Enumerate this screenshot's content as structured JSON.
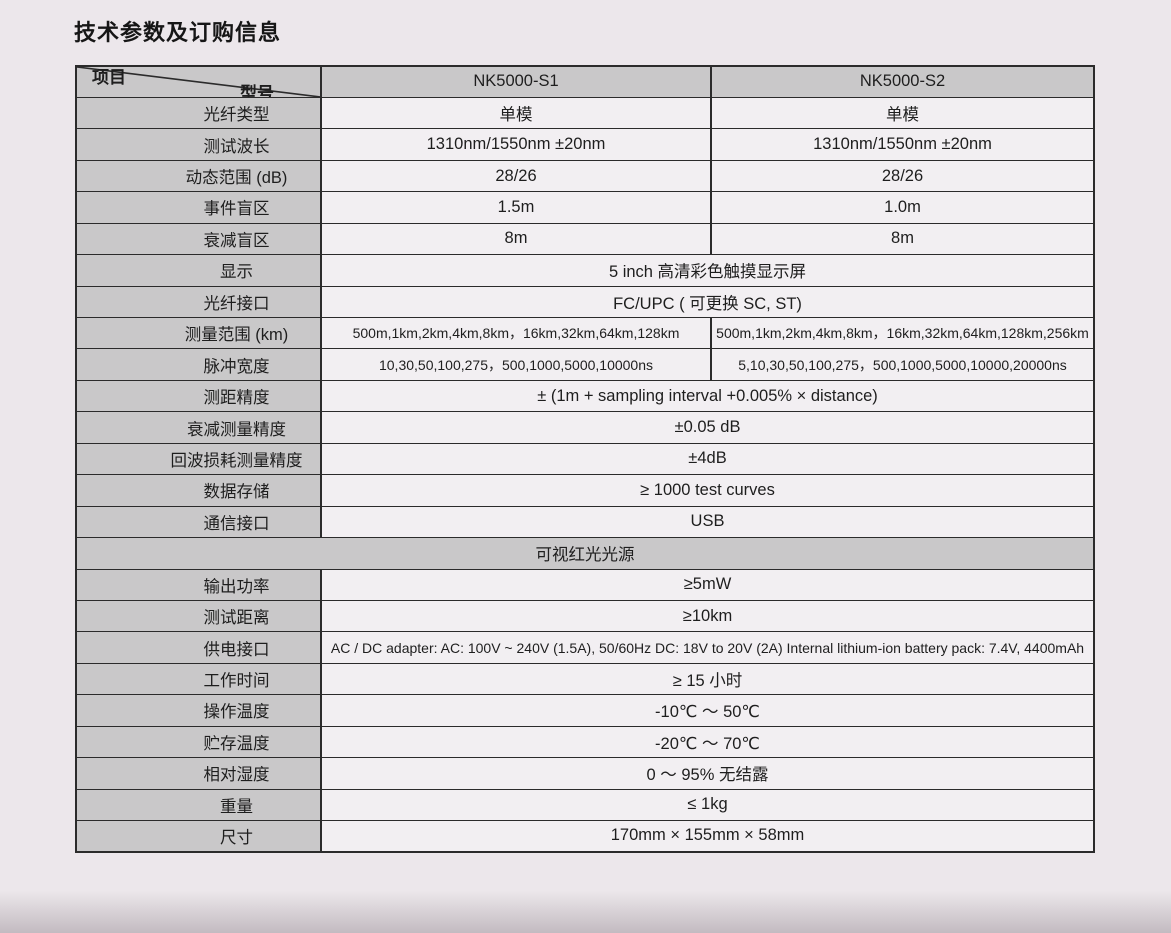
{
  "page": {
    "title": "技术参数及订购信息"
  },
  "colors": {
    "page_bg": "#ece7eb",
    "cell_bg": "#f2eff2",
    "header_bg": "#c9c8c9",
    "border": "#2b2b2b",
    "text": "#1e1e1e"
  },
  "table": {
    "corner": {
      "top_right": "型号",
      "bottom_left": "项目"
    },
    "columns": [
      "NK5000-S1",
      "NK5000-S2"
    ],
    "rows": [
      {
        "label": "光纤类型",
        "values": [
          "单模",
          "单模"
        ]
      },
      {
        "label": "测试波长",
        "values": [
          "1310nm/1550nm ±20nm",
          "1310nm/1550nm ±20nm"
        ]
      },
      {
        "label": "动态范围 (dB)",
        "values": [
          "28/26",
          "28/26"
        ]
      },
      {
        "label": "事件盲区",
        "values": [
          "1.5m",
          "1.0m"
        ]
      },
      {
        "label": "衰减盲区",
        "values": [
          "8m",
          "8m"
        ]
      },
      {
        "label": "显示",
        "span": "5 inch 高清彩色触摸显示屏"
      },
      {
        "label": "光纤接口",
        "span": "FC/UPC ( 可更换 SC, ST)"
      },
      {
        "label": "测量范围 (km)",
        "small": true,
        "values": [
          "500m,1km,2km,4km,8km，16km,32km,64km,128km",
          "500m,1km,2km,4km,8km，16km,32km,64km,128km,256km"
        ]
      },
      {
        "label": "脉冲宽度",
        "small": true,
        "values": [
          "10,30,50,100,275，500,1000,5000,10000ns",
          "5,10,30,50,100,275，500,1000,5000,10000,20000ns"
        ]
      },
      {
        "label": "测距精度",
        "span": "± (1m + sampling interval +0.005% × distance)"
      },
      {
        "label": "衰减测量精度",
        "span": "±0.05 dB"
      },
      {
        "label": "回波损耗测量精度",
        "span": "±4dB"
      },
      {
        "label": "数据存储",
        "span": "≥ 1000 test curves"
      },
      {
        "label": "通信接口",
        "span": "USB"
      },
      {
        "section": "可视红光光源"
      },
      {
        "label": "输出功率",
        "span": "≥5mW"
      },
      {
        "label": "测试距离",
        "span": "≥10km"
      },
      {
        "label": "供电接口",
        "small": true,
        "span": "AC / DC adapter: AC: 100V ~ 240V (1.5A), 50/60Hz  DC: 18V to 20V (2A)  Internal lithium-ion battery pack: 7.4V, 4400mAh"
      },
      {
        "label": "工作时间",
        "span": "≥ 15 小时"
      },
      {
        "label": "操作温度",
        "span": "-10℃ ～ 50℃"
      },
      {
        "label": "贮存温度",
        "span": "-20℃ ～ 70℃"
      },
      {
        "label": "相对湿度",
        "span": "0 ～ 95% 无结露"
      },
      {
        "label": "重量",
        "span": "≤ 1kg"
      },
      {
        "label": "尺寸",
        "span": "170mm × 155mm × 58mm"
      }
    ]
  }
}
